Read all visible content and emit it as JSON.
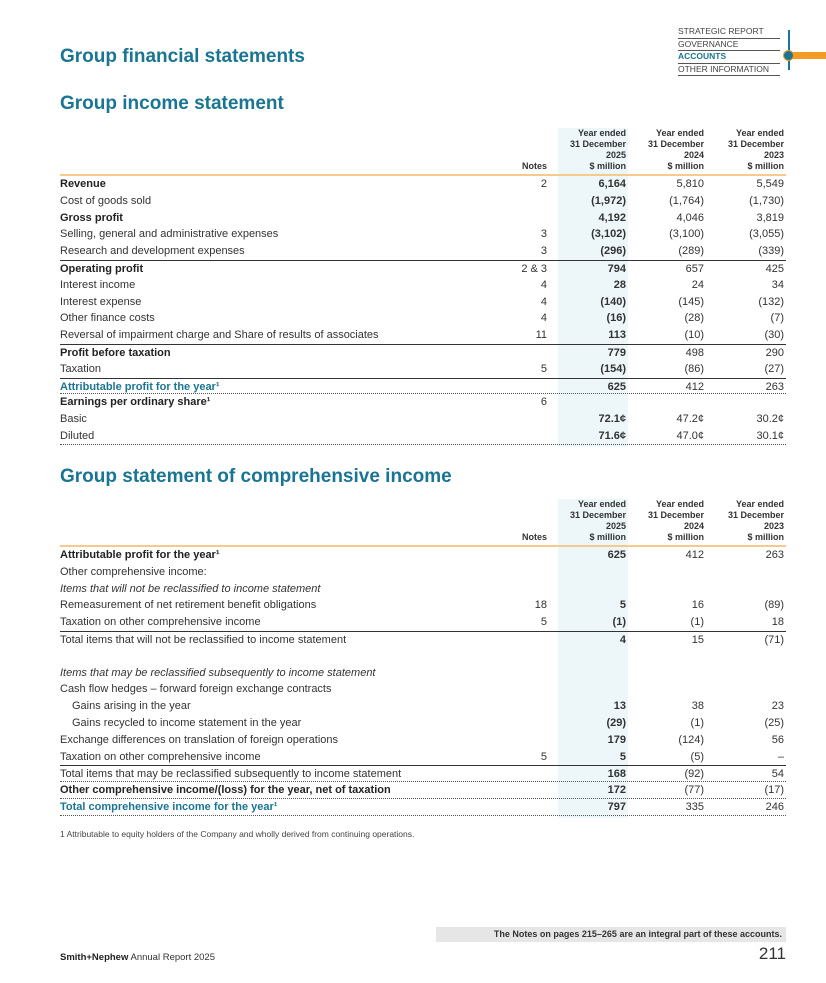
{
  "nav": {
    "items": [
      "STRATEGIC REPORT",
      "GOVERNANCE",
      "ACCOUNTS",
      "OTHER INFORMATION"
    ],
    "active": 2,
    "accent": "#1a7594",
    "highlight": "#f39c24"
  },
  "titles": {
    "section": "Group financial statements",
    "income": "Group income statement",
    "comprehensive": "Group statement of comprehensive income"
  },
  "header": {
    "notes": "Notes",
    "cols": [
      "Year ended\n31 December\n2025\n$ million",
      "Year ended\n31 December\n2024\n$ million",
      "Year ended\n31 December\n2023\n$ million"
    ]
  },
  "income_statement": [
    {
      "label": "Revenue",
      "note": "2",
      "v": [
        "6,164",
        "5,810",
        "5,549"
      ],
      "style": "bold"
    },
    {
      "label": "Cost of goods sold",
      "note": "",
      "v": [
        "(1,972)",
        "(1,764)",
        "(1,730)"
      ]
    },
    {
      "label": "Gross profit",
      "note": "",
      "v": [
        "4,192",
        "4,046",
        "3,819"
      ],
      "style": "bold"
    },
    {
      "label": "Selling, general and administrative expenses",
      "note": "3",
      "v": [
        "(3,102)",
        "(3,100)",
        "(3,055)"
      ]
    },
    {
      "label": "Research and development expenses",
      "note": "3",
      "v": [
        "(296)",
        "(289)",
        "(339)"
      ]
    },
    {
      "label": "Operating profit",
      "note": "2 & 3",
      "v": [
        "794",
        "657",
        "425"
      ],
      "style": "bold st"
    },
    {
      "label": "Interest income",
      "note": "4",
      "v": [
        "28",
        "24",
        "34"
      ]
    },
    {
      "label": "Interest expense",
      "note": "4",
      "v": [
        "(140)",
        "(145)",
        "(132)"
      ]
    },
    {
      "label": "Other finance costs",
      "note": "4",
      "v": [
        "(16)",
        "(28)",
        "(7)"
      ]
    },
    {
      "label": "Reversal of impairment charge and Share of results of associates",
      "note": "11",
      "v": [
        "113",
        "(10)",
        "(30)"
      ]
    },
    {
      "label": "Profit before taxation",
      "note": "",
      "v": [
        "779",
        "498",
        "290"
      ],
      "style": "bold st"
    },
    {
      "label": "Taxation",
      "note": "5",
      "v": [
        "(154)",
        "(86)",
        "(27)"
      ]
    },
    {
      "label": "Attributable profit for the year¹",
      "note": "",
      "v": [
        "625",
        "412",
        "263"
      ],
      "style": "teal st db"
    },
    {
      "label": "Earnings per ordinary share¹",
      "note": "6",
      "v": [
        "",
        "",
        ""
      ],
      "style": "bold"
    },
    {
      "label": "Basic",
      "note": "",
      "v": [
        "72.1¢",
        "47.2¢",
        "30.2¢"
      ]
    },
    {
      "label": "Diluted",
      "note": "",
      "v": [
        "71.6¢",
        "47.0¢",
        "30.1¢"
      ],
      "style": "db"
    }
  ],
  "comprehensive_income": [
    {
      "label": "Attributable profit for the year¹",
      "note": "",
      "v": [
        "625",
        "412",
        "263"
      ],
      "style": "bold"
    },
    {
      "label": "Other comprehensive income:",
      "note": "",
      "v": [
        "",
        "",
        ""
      ]
    },
    {
      "label": "Items that will not be reclassified to income statement",
      "note": "",
      "v": [
        "",
        "",
        ""
      ],
      "style": "ital"
    },
    {
      "label": "Remeasurement of net retirement benefit obligations",
      "note": "18",
      "v": [
        "5",
        "16",
        "(89)"
      ]
    },
    {
      "label": "Taxation on other comprehensive income",
      "note": "5",
      "v": [
        "(1)",
        "(1)",
        "18"
      ]
    },
    {
      "label": "Total items that will not be reclassified to income statement",
      "note": "",
      "v": [
        "4",
        "15",
        "(71)"
      ],
      "style": "st"
    },
    {
      "label": "",
      "note": "",
      "v": [
        "",
        "",
        ""
      ]
    },
    {
      "label": "Items that may be reclassified subsequently to income statement",
      "note": "",
      "v": [
        "",
        "",
        ""
      ],
      "style": "ital"
    },
    {
      "label": "Cash flow hedges – forward foreign exchange contracts",
      "note": "",
      "v": [
        "",
        "",
        ""
      ]
    },
    {
      "label": "Gains arising in the year",
      "note": "",
      "v": [
        "13",
        "38",
        "23"
      ],
      "style": "ind"
    },
    {
      "label": "Gains recycled to income statement in the year",
      "note": "",
      "v": [
        "(29)",
        "(1)",
        "(25)"
      ],
      "style": "ind"
    },
    {
      "label": "Exchange differences on translation of foreign operations",
      "note": "",
      "v": [
        "179",
        "(124)",
        "56"
      ]
    },
    {
      "label": "Taxation on other comprehensive income",
      "note": "5",
      "v": [
        "5",
        "(5)",
        "–"
      ]
    },
    {
      "label": "Total items that may be reclassified subsequently to income statement",
      "note": "",
      "v": [
        "168",
        "(92)",
        "54"
      ],
      "style": "st db"
    },
    {
      "label": "Other comprehensive income/(loss) for the year, net of taxation",
      "note": "",
      "v": [
        "172",
        "(77)",
        "(17)"
      ],
      "style": "bold db"
    },
    {
      "label": "Total comprehensive income for the year¹",
      "note": "",
      "v": [
        "797",
        "335",
        "246"
      ],
      "style": "teal db"
    }
  ],
  "footnote": "1  Attributable to equity holders of the Company and wholly derived from continuing operations.",
  "notes_banner": "The Notes on pages 215–265 are an integral part of these accounts.",
  "footer": {
    "brand": "Smith+Nephew",
    "report": " Annual Report 2025",
    "page": "211"
  }
}
